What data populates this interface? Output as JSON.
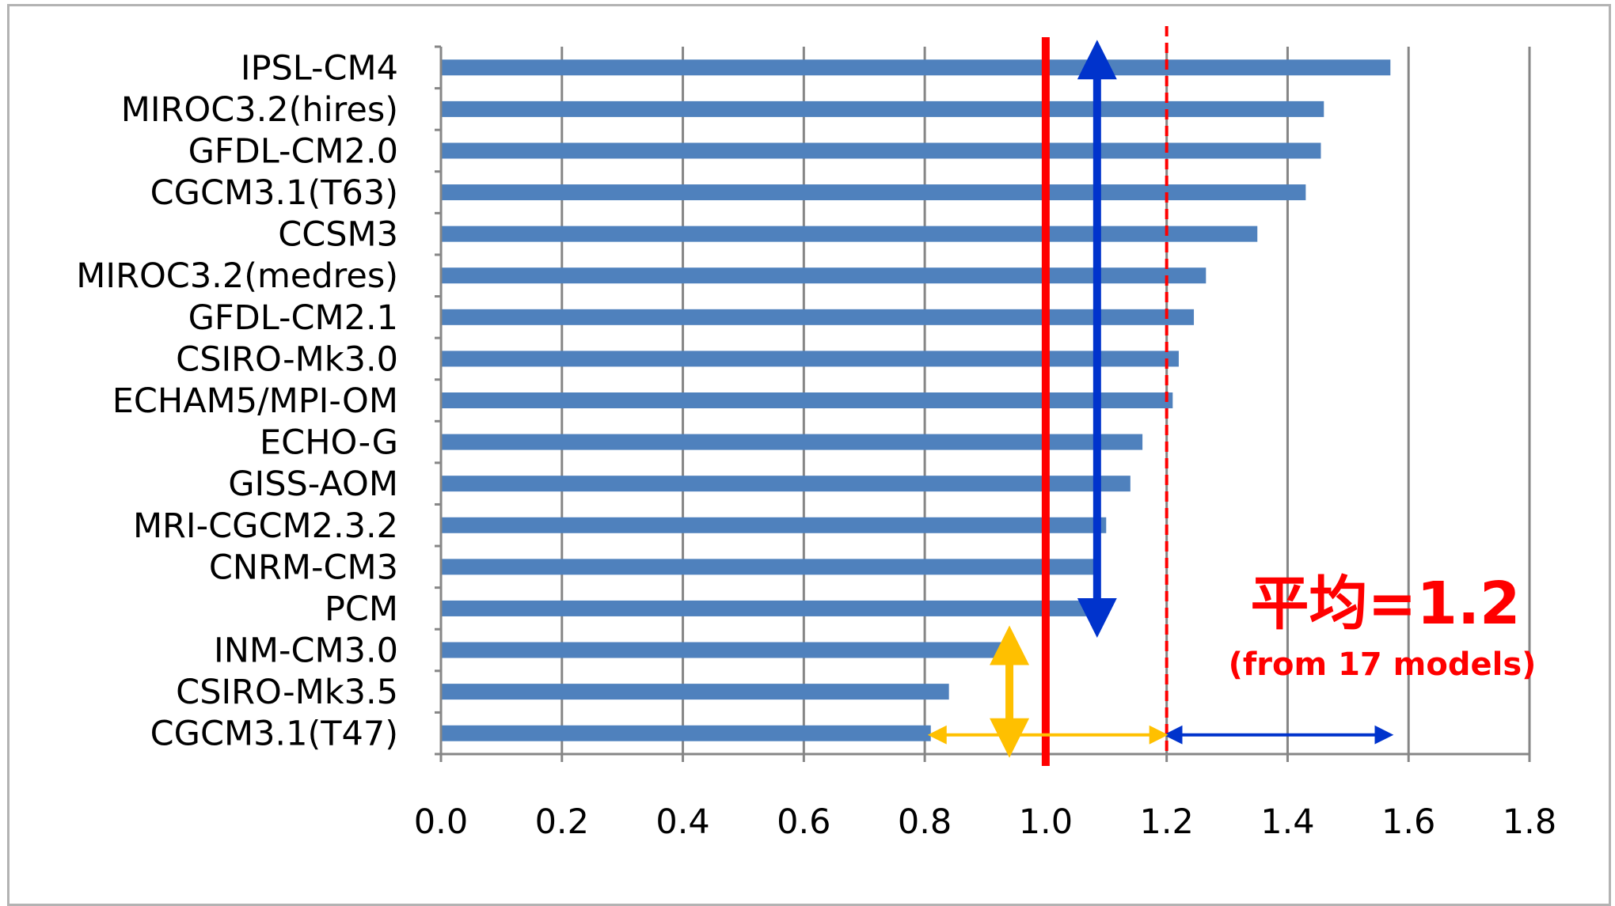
{
  "chart_data": {
    "type": "bar",
    "orientation": "horizontal",
    "title": "",
    "xlabel": "",
    "ylabel": "",
    "categories": [
      "IPSL-CM4",
      "MIROC3.2(hires)",
      "GFDL-CM2.0",
      "CGCM3.1(T63)",
      "CCSM3",
      "MIROC3.2(medres)",
      "GFDL-CM2.1",
      "CSIRO-Mk3.0",
      "ECHAM5/MPI-OM",
      "ECHO-G",
      "GISS-AOM",
      "MRI-CGCM2.3.2",
      "CNRM-CM3",
      "PCM",
      "INM-CM3.0",
      "CSIRO-Mk3.5",
      "CGCM3.1(T47)"
    ],
    "values": [
      1.57,
      1.46,
      1.455,
      1.43,
      1.35,
      1.265,
      1.245,
      1.22,
      1.21,
      1.16,
      1.14,
      1.1,
      1.085,
      1.075,
      0.95,
      0.84,
      0.81
    ],
    "xlim": [
      0.0,
      1.8
    ],
    "xticks": [
      "0.0",
      "0.2",
      "0.4",
      "0.6",
      "0.8",
      "1.0",
      "1.2",
      "1.4",
      "1.6",
      "1.8"
    ],
    "grid": "vertical",
    "bar_color": "#4f81bd",
    "reference_line": {
      "value": 1.0,
      "color": "#ff0000",
      "style": "solid"
    },
    "mean_line": {
      "value": 1.2,
      "color": "#ff0000",
      "style": "dashed"
    },
    "annotations": {
      "mean_label": "平均=1.2",
      "mean_sublabel": "(from 17 models)",
      "blue_vertical_arrow": {
        "from_category": "IPSL-CM4",
        "to_category": "PCM",
        "x": 1.085,
        "color": "#0033cc"
      },
      "blue_horizontal_arrow": {
        "from": 1.2,
        "to": 1.57,
        "category": "CGCM3.1(T47)",
        "color": "#0033cc"
      },
      "orange_vertical_arrow": {
        "from_category": "INM-CM3.0",
        "to_category": "CGCM3.1(T47)",
        "x": 0.94,
        "color": "#ffc000"
      },
      "orange_horizontal_arrow": {
        "from": 0.81,
        "to": 1.2,
        "category": "CGCM3.1(T47)",
        "color": "#ffc000"
      }
    }
  }
}
